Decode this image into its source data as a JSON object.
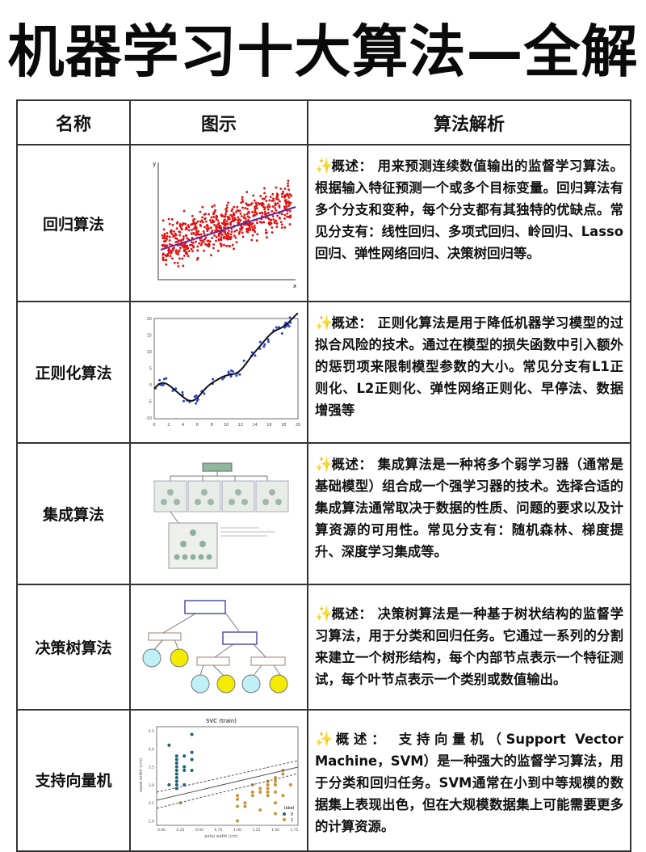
{
  "title": "机器学习十大算法—全解",
  "headers": [
    "名称",
    "图示",
    "算法解析"
  ],
  "overview_label": "概述：",
  "rows": [
    {
      "name": "回归算法",
      "desc": "用来预测连续数值输出的监督学习算法。根据输入特征预测一个或多个目标变量。回归算法有多个分支和变种，每个分支都有其独特的优缺点。常见分支有：线性回归、多项式回归、岭回归、Lasso回归、弹性网络回归、决策树回归等。",
      "figure": {
        "x_label": "x",
        "y_label": "y"
      }
    },
    {
      "name": "正则化算法",
      "desc": "正则化算法是用于降低机器学习模型的过拟合风险的技术。通过在模型的损失函数中引入额外的惩罚项来限制模型参数的大小。常见分支有L1正则化、L2正则化、弹性网络正则化、早停法、数据增强等",
      "figure": {
        "x_ticks": [
          "0",
          "2",
          "4",
          "6",
          "8",
          "10",
          "12",
          "14",
          "16",
          "18",
          "20"
        ],
        "y_ticks": [
          "20",
          "15",
          "10",
          "5",
          "0",
          "-5",
          "-10"
        ]
      }
    },
    {
      "name": "集成算法",
      "desc": "集成算法是一种将多个弱学习器（通常是基础模型）组合成一个强学习器的技术。选择合适的集成算法通常取决于数据的性质、问题的要求以及计算资源的可用性。常见分支有：随机森林、梯度提升、深度学习集成等。"
    },
    {
      "name": "决策树算法",
      "desc": "决策树算法是一种基于树状结构的监督学习算法，用于分类和回归任务。它通过一系列的分割来建立一个树形结构，每个内部节点表示一个特征测试，每个叶节点表示一个类别或数值输出。"
    },
    {
      "name": "支持向量机",
      "desc": "支持向量机（Support Vector Machine，SVM）是一种强大的监督学习算法，用于分类和回归任务。SVM通常在小到中等规模的数据集上表现出色，但在大规模数据集上可能需要更多的计算资源。",
      "figure": {
        "title": "SVC (train)",
        "x_label": "petal width (cm)",
        "y_label": "sepal width (cm)",
        "x_ticks": [
          "0.00",
          "0.25",
          "0.50",
          "0.75",
          "1.00",
          "1.25",
          "1.50",
          "1.75"
        ],
        "y_ticks": [
          "4.5",
          "4.0",
          "3.5",
          "3.0",
          "2.5",
          "2.0"
        ],
        "legend_title": "label",
        "legend": [
          "0",
          "1"
        ]
      }
    }
  ],
  "colors": {
    "scatter": "#e01010",
    "fit_line": "#5a2ca0",
    "svm_class0": "#1f5f7a",
    "svm_class1": "#c9913a",
    "leaf_blue": "#bff0f7",
    "leaf_yellow": "#f4ec00"
  }
}
